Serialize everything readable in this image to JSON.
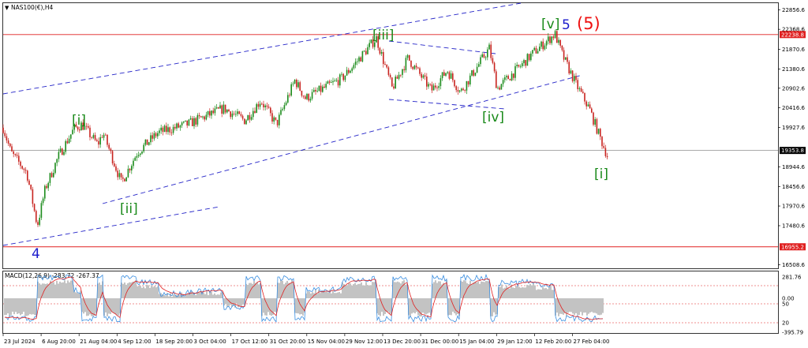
{
  "header": {
    "title": "NAS100(€),H4",
    "macd_label": "MACD(12,26,9) -283.72 -267.37"
  },
  "chart_data": [
    {
      "type": "line",
      "title": "NAS100(€),H4",
      "price_axis": {
        "ticks": [
          22856.6,
          22368.6,
          21870.6,
          21380.6,
          20902.6,
          20416.6,
          19927.6,
          18944.6,
          18456.6,
          17970.6,
          17480.6,
          16508.6
        ],
        "ylim": [
          16420,
          23020
        ]
      },
      "time_axis": {
        "labels": [
          "23 Jul 2024",
          "6 Aug 20:00",
          "21 Aug 04:00",
          "4 Sep 12:00",
          "18 Sep 20:00",
          "3 Oct 04:00",
          "17 Oct 12:00",
          "31 Oct 20:00",
          "15 Nov 04:00",
          "29 Nov 12:00",
          "13 Dec 20:00",
          "31 Dec 00:00",
          "15 Jan 04:00",
          "29 Jan 12:00",
          "12 Feb 20:00",
          "27 Feb 04:00"
        ]
      },
      "horizontal_levels": [
        {
          "value": 22238.8,
          "label": "22238.8",
          "color": "#e02020"
        },
        {
          "value": 16955.2,
          "label": "16955.2",
          "color": "#e02020"
        },
        {
          "value": 19353.8,
          "label": "19353.8",
          "color": "#777777"
        }
      ],
      "price_path": [
        {
          "x": "23 Jul 2024",
          "y": 19920
        },
        {
          "x": "26 Jul 2024",
          "y": 19300
        },
        {
          "x": "1 Aug 2024",
          "y": 18800
        },
        {
          "x": "5 Aug 2024",
          "y": 17480
        },
        {
          "x": "8 Aug 2024",
          "y": 18400
        },
        {
          "x": "13 Aug 2024",
          "y": 19200
        },
        {
          "x": "19 Aug 2024",
          "y": 19900
        },
        {
          "x": "22 Aug 2024",
          "y": 20000
        },
        {
          "x": "28 Aug 2024",
          "y": 19500
        },
        {
          "x": "30 Aug 2024",
          "y": 19800
        },
        {
          "x": "6 Sep 2024",
          "y": 18550
        },
        {
          "x": "12 Sep 2024",
          "y": 19300
        },
        {
          "x": "20 Sep 2024",
          "y": 19800
        },
        {
          "x": "1 Oct 2024",
          "y": 20000
        },
        {
          "x": "8 Oct 2024",
          "y": 20200
        },
        {
          "x": "15 Oct 2024",
          "y": 20400
        },
        {
          "x": "23 Oct 2024",
          "y": 20100
        },
        {
          "x": "29 Oct 2024",
          "y": 20600
        },
        {
          "x": "4 Nov 2024",
          "y": 20000
        },
        {
          "x": "11 Nov 2024",
          "y": 21100
        },
        {
          "x": "15 Nov 2024",
          "y": 20650
        },
        {
          "x": "22 Nov 2024",
          "y": 20900
        },
        {
          "x": "29 Nov 2024",
          "y": 21150
        },
        {
          "x": "5 Dec 2024",
          "y": 21600
        },
        {
          "x": "12 Dec 2024",
          "y": 22150
        },
        {
          "x": "18 Dec 2024",
          "y": 20900
        },
        {
          "x": "24 Dec 2024",
          "y": 21650
        },
        {
          "x": "2 Jan 2025",
          "y": 20850
        },
        {
          "x": "8 Jan 2025",
          "y": 21350
        },
        {
          "x": "13 Jan 2025",
          "y": 20800
        },
        {
          "x": "24 Jan 2025",
          "y": 21900
        },
        {
          "x": "27 Jan 2025",
          "y": 20900
        },
        {
          "x": "4 Feb 2025",
          "y": 21400
        },
        {
          "x": "10 Feb 2025",
          "y": 21800
        },
        {
          "x": "18 Feb 2025",
          "y": 22250
        },
        {
          "x": "21 Feb 2025",
          "y": 21700
        },
        {
          "x": "26 Feb 2025",
          "y": 21000
        },
        {
          "x": "3 Mar 2025",
          "y": 20400
        },
        {
          "x": "7 Mar 2025",
          "y": 19700
        },
        {
          "x": "10 Mar 2025",
          "y": 19200
        }
      ],
      "wave_labels": [
        {
          "text": "[i]",
          "color": "green"
        },
        {
          "text": "[ii]",
          "color": "green"
        },
        {
          "text": "[iii]",
          "color": "green"
        },
        {
          "text": "[iv]",
          "color": "green"
        },
        {
          "text": "[v]",
          "color": "green"
        },
        {
          "text": "5",
          "color": "blue"
        },
        {
          "text": "(5)",
          "color": "red"
        },
        {
          "text": "[i]",
          "color": "green"
        },
        {
          "text": "4",
          "color": "blue"
        }
      ]
    },
    {
      "type": "line",
      "title": "MACD(12,26,9) -283.72 -267.37",
      "series": [
        {
          "name": "MACD",
          "values": [
            -283.72
          ]
        },
        {
          "name": "Signal",
          "values": [
            -267.37
          ]
        }
      ],
      "axis_ticks": [
        "281.76",
        "0.00",
        "50",
        "20",
        "-395.79"
      ],
      "levels": [
        80,
        50,
        20
      ]
    }
  ],
  "colors": {
    "bull": "#1c8c1c",
    "bear": "#c8231f",
    "trendline": "#2424c8",
    "level": "#e02020"
  }
}
